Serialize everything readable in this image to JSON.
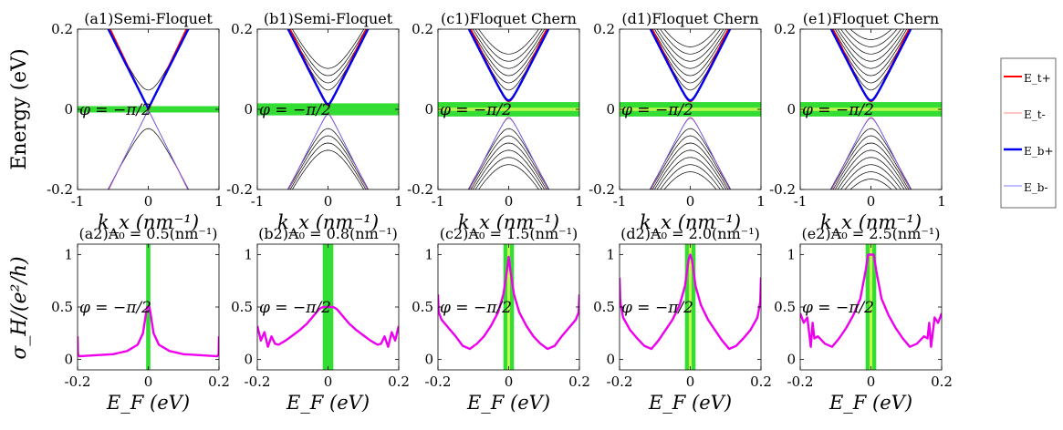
{
  "figure": {
    "row_labels": {
      "energy_ylabel": "Energy (eV)",
      "sigma_ylabel": "σ_H/(e²/h)",
      "kx_xlabel": "k_x (nm⁻¹)",
      "ef_xlabel": "E_F (eV)"
    },
    "phase_annotation": "φ = −π/2"
  },
  "chart_data": [
    {
      "id": "a1",
      "type": "line",
      "title": "(a1)Semi-Floquet",
      "xlabel": "k_x (nm⁻¹)",
      "ylabel": "Energy (eV)",
      "xlim": [
        -1,
        1
      ],
      "ylim": [
        -0.2,
        0.2
      ],
      "xticks": [
        -1,
        0,
        1
      ],
      "yticks": [
        -0.2,
        0,
        0.2
      ],
      "gap": 0.0,
      "green_band": [
        -0.008,
        0.008
      ],
      "extra_bands": 1,
      "annotation": "φ = −π/2"
    },
    {
      "id": "b1",
      "type": "line",
      "title": "(b1)Semi-Floquet",
      "xlabel": "k_x (nm⁻¹)",
      "ylabel": "",
      "xlim": [
        -1,
        1
      ],
      "ylim": [
        -0.2,
        0.2
      ],
      "xticks": [
        -1,
        0,
        1
      ],
      "yticks": [
        -0.2,
        0,
        0.2
      ],
      "gap": 0.01,
      "green_band": [
        -0.015,
        0.015
      ],
      "extra_bands": 4,
      "annotation": "φ = −π/2"
    },
    {
      "id": "c1",
      "type": "line",
      "title": "(c1)Floquet Chern",
      "xlabel": "k_x (nm⁻¹)",
      "ylabel": "",
      "xlim": [
        -1,
        1
      ],
      "ylim": [
        -0.2,
        0.2
      ],
      "xticks": [
        -1,
        0,
        1
      ],
      "yticks": [
        -0.2,
        0,
        0.2
      ],
      "gap": 0.02,
      "green_band": [
        -0.018,
        0.018
      ],
      "extra_bands": 6,
      "annotation": "φ = −π/2"
    },
    {
      "id": "d1",
      "type": "line",
      "title": "(d1)Floquet Chern",
      "xlabel": "k_x (nm⁻¹)",
      "ylabel": "",
      "xlim": [
        -1,
        1
      ],
      "ylim": [
        -0.2,
        0.2
      ],
      "xticks": [
        -1,
        0,
        1
      ],
      "yticks": [
        -0.2,
        0,
        0.2
      ],
      "gap": 0.02,
      "green_band": [
        -0.018,
        0.018
      ],
      "extra_bands": 7,
      "annotation": "φ = −π/2"
    },
    {
      "id": "e1",
      "type": "line",
      "title": "(e1)Floquet Chern",
      "xlabel": "k_x (nm⁻¹)",
      "ylabel": "",
      "xlim": [
        -1,
        1
      ],
      "ylim": [
        -0.2,
        0.2
      ],
      "xticks": [
        -1,
        0,
        1
      ],
      "yticks": [
        -0.2,
        0,
        0.2
      ],
      "gap": 0.02,
      "green_band": [
        -0.018,
        0.018
      ],
      "extra_bands": 8,
      "annotation": "φ = −π/2",
      "legend": [
        "E_t+",
        "E_t-",
        "E_b+",
        "E_b-"
      ]
    },
    {
      "id": "a2",
      "type": "line",
      "title": "(a2)A₀ = 0.5(nm⁻¹)",
      "xlabel": "E_F (eV)",
      "ylabel": "σ_H/(e²/h)",
      "xlim": [
        -0.2,
        0.2
      ],
      "ylim": [
        -0.1,
        1.1
      ],
      "xticks": [
        -0.2,
        0,
        0.2
      ],
      "yticks": [
        0,
        0.5,
        1
      ],
      "green_band": [
        -0.006,
        0.006
      ],
      "annotation": "φ = −π/2",
      "series": [
        {
          "name": "σ_H",
          "x": [
            -0.2,
            -0.199,
            -0.195,
            -0.15,
            -0.1,
            -0.06,
            -0.03,
            -0.015,
            -0.006,
            -0.003,
            0.003,
            0.006,
            0.015,
            0.03,
            0.06,
            0.1,
            0.15,
            0.195,
            0.199,
            0.2
          ],
          "y": [
            0.22,
            0.05,
            0.03,
            0.04,
            0.05,
            0.08,
            0.14,
            0.25,
            0.45,
            0.5,
            0.5,
            0.45,
            0.25,
            0.14,
            0.08,
            0.05,
            0.04,
            0.03,
            0.05,
            0.22
          ]
        }
      ]
    },
    {
      "id": "b2",
      "type": "line",
      "title": "(b2)A₀ = 0.8(nm⁻¹)",
      "xlabel": "E_F (eV)",
      "ylabel": "",
      "xlim": [
        -0.2,
        0.2
      ],
      "ylim": [
        -0.1,
        1.1
      ],
      "xticks": [
        -0.2,
        0,
        0.2
      ],
      "yticks": [
        0,
        0.5,
        1
      ],
      "green_band": [
        -0.015,
        0.015
      ],
      "annotation": "φ = −π/2",
      "series": [
        {
          "name": "σ_H",
          "x": [
            -0.2,
            -0.19,
            -0.18,
            -0.17,
            -0.16,
            -0.15,
            -0.14,
            -0.12,
            -0.1,
            -0.08,
            -0.06,
            -0.04,
            -0.025,
            -0.015,
            -0.01,
            0.01,
            0.015,
            0.025,
            0.04,
            0.06,
            0.08,
            0.1,
            0.12,
            0.14,
            0.15,
            0.16,
            0.17,
            0.18,
            0.19,
            0.2
          ],
          "y": [
            0.32,
            0.18,
            0.26,
            0.12,
            0.22,
            0.15,
            0.14,
            0.18,
            0.23,
            0.28,
            0.34,
            0.42,
            0.48,
            0.5,
            0.5,
            0.5,
            0.5,
            0.48,
            0.42,
            0.34,
            0.28,
            0.23,
            0.18,
            0.14,
            0.15,
            0.22,
            0.12,
            0.26,
            0.18,
            0.32
          ]
        }
      ]
    },
    {
      "id": "c2",
      "type": "line",
      "title": "(c2)A₀ = 1.5(nm⁻¹)",
      "xlabel": "E_F (eV)",
      "ylabel": "",
      "xlim": [
        -0.2,
        0.2
      ],
      "ylim": [
        -0.1,
        1.1
      ],
      "xticks": [
        -0.2,
        0,
        0.2
      ],
      "yticks": [
        0,
        0.5,
        1
      ],
      "green_band": [
        -0.015,
        0.015
      ],
      "annotation": "φ = −π/2",
      "series": [
        {
          "name": "σ_H",
          "x": [
            -0.2,
            -0.198,
            -0.19,
            -0.17,
            -0.15,
            -0.13,
            -0.11,
            -0.09,
            -0.07,
            -0.05,
            -0.03,
            -0.015,
            -0.005,
            0,
            0.005,
            0.015,
            0.03,
            0.05,
            0.07,
            0.09,
            0.11,
            0.13,
            0.15,
            0.17,
            0.19,
            0.198,
            0.2
          ],
          "y": [
            0.62,
            0.45,
            0.38,
            0.3,
            0.22,
            0.13,
            0.1,
            0.15,
            0.22,
            0.32,
            0.45,
            0.62,
            0.85,
            0.98,
            0.85,
            0.62,
            0.45,
            0.32,
            0.22,
            0.15,
            0.1,
            0.13,
            0.22,
            0.3,
            0.38,
            0.45,
            0.62
          ]
        }
      ]
    },
    {
      "id": "d2",
      "type": "line",
      "title": "(d2)A₀ = 2.0(nm⁻¹)",
      "xlabel": "E_F (eV)",
      "ylabel": "",
      "xlim": [
        -0.2,
        0.2
      ],
      "ylim": [
        -0.1,
        1.1
      ],
      "xticks": [
        -0.2,
        0,
        0.2
      ],
      "yticks": [
        0,
        0.5,
        1
      ],
      "green_band": [
        -0.015,
        0.015
      ],
      "annotation": "φ = −π/2",
      "series": [
        {
          "name": "σ_H",
          "x": [
            -0.2,
            -0.198,
            -0.19,
            -0.17,
            -0.15,
            -0.13,
            -0.11,
            -0.09,
            -0.07,
            -0.05,
            -0.03,
            -0.015,
            -0.005,
            0,
            0.005,
            0.015,
            0.03,
            0.05,
            0.07,
            0.09,
            0.11,
            0.13,
            0.15,
            0.17,
            0.19,
            0.198,
            0.2
          ],
          "y": [
            0.78,
            0.55,
            0.4,
            0.28,
            0.2,
            0.13,
            0.1,
            0.18,
            0.28,
            0.38,
            0.52,
            0.7,
            0.95,
            1.0,
            0.95,
            0.7,
            0.52,
            0.38,
            0.28,
            0.18,
            0.1,
            0.13,
            0.2,
            0.28,
            0.4,
            0.55,
            0.78
          ]
        }
      ]
    },
    {
      "id": "e2",
      "type": "line",
      "title": "(e2)A₀ = 2.5(nm⁻¹)",
      "xlabel": "E_F (eV)",
      "ylabel": "",
      "xlim": [
        -0.2,
        0.2
      ],
      "ylim": [
        -0.1,
        1.1
      ],
      "xticks": [
        -0.2,
        0,
        0.2
      ],
      "yticks": [
        0,
        0.5,
        1
      ],
      "green_band": [
        -0.015,
        0.015
      ],
      "annotation": "φ = −π/2",
      "series": [
        {
          "name": "σ_H",
          "x": [
            -0.2,
            -0.19,
            -0.18,
            -0.17,
            -0.165,
            -0.16,
            -0.15,
            -0.13,
            -0.11,
            -0.09,
            -0.07,
            -0.05,
            -0.03,
            -0.015,
            -0.008,
            0,
            0.008,
            0.015,
            0.03,
            0.05,
            0.07,
            0.09,
            0.11,
            0.13,
            0.15,
            0.16,
            0.165,
            0.17,
            0.18,
            0.19,
            0.2
          ],
          "y": [
            0.44,
            0.35,
            0.4,
            0.12,
            0.35,
            0.2,
            0.22,
            0.15,
            0.12,
            0.2,
            0.3,
            0.42,
            0.58,
            0.85,
            1.0,
            1.0,
            1.0,
            0.85,
            0.58,
            0.42,
            0.3,
            0.2,
            0.12,
            0.15,
            0.22,
            0.2,
            0.35,
            0.12,
            0.4,
            0.35,
            0.44
          ]
        }
      ]
    }
  ],
  "colors": {
    "E_t_plus": "#ff0000",
    "E_t_minus": "#ff6666",
    "E_b_plus": "#0000ee",
    "E_b_minus": "#5555ff",
    "other_bands": "#000000",
    "green_band": "#33dd33",
    "yellow_core": "#ddff55",
    "sigma_curve": "#ee00ee"
  }
}
